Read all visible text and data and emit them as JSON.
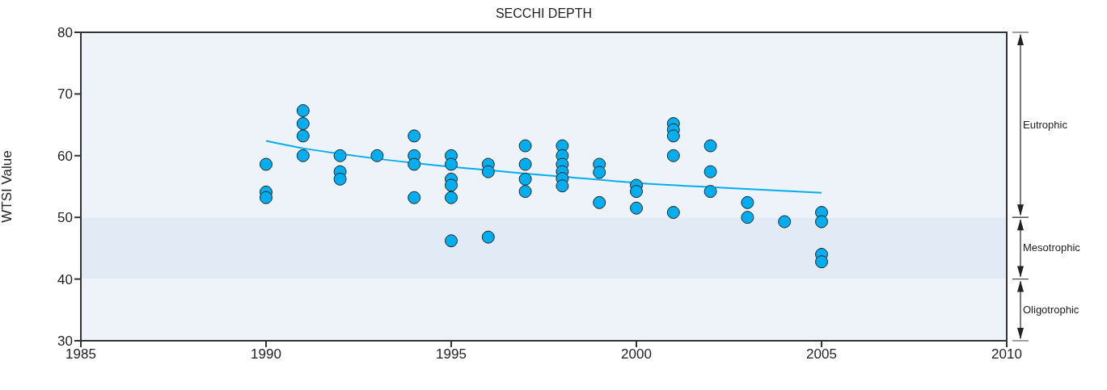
{
  "chart_data": {
    "type": "scatter",
    "title": "SECCHI DEPTH",
    "ylabel": "WTSI Value",
    "xlim": [
      1985,
      2010
    ],
    "xticks": [
      1985,
      1990,
      1995,
      2000,
      2005,
      2010
    ],
    "ylim": [
      30,
      80
    ],
    "yticks": [
      30,
      40,
      50,
      60,
      70,
      80
    ],
    "grid": false,
    "legend": false,
    "series": [
      {
        "type": "scatter",
        "marker": "circle",
        "color": "#00aeef",
        "x": [
          1990,
          1990,
          1990,
          1991,
          1991,
          1991,
          1991,
          1992,
          1992,
          1992,
          1993,
          1994,
          1994,
          1994,
          1994,
          1995,
          1995,
          1995,
          1995,
          1995,
          1995,
          1996,
          1996,
          1996,
          1997,
          1997,
          1997,
          1997,
          1998,
          1998,
          1998,
          1998,
          1998,
          1998,
          1999,
          1999,
          1999,
          2000,
          2000,
          2000,
          2001,
          2001,
          2001,
          2001,
          2001,
          2002,
          2002,
          2002,
          2003,
          2003,
          2004,
          2005,
          2005,
          2005,
          2005
        ],
        "values": [
          58.6,
          54.1,
          53.2,
          67.3,
          65.2,
          63.2,
          60.0,
          60.0,
          57.4,
          56.2,
          60.0,
          63.2,
          60.0,
          58.6,
          53.2,
          60.0,
          58.6,
          56.2,
          55.2,
          53.2,
          46.2,
          58.6,
          57.4,
          46.8,
          61.6,
          58.6,
          56.2,
          54.2,
          61.6,
          60.0,
          58.6,
          57.4,
          56.3,
          55.1,
          58.6,
          57.3,
          52.4,
          55.2,
          54.2,
          51.5,
          65.2,
          64.2,
          63.2,
          60.0,
          50.8,
          61.6,
          57.4,
          54.2,
          52.4,
          50.0,
          49.3,
          50.8,
          49.3,
          44.0,
          42.8
        ]
      },
      {
        "type": "line",
        "marker": "none",
        "color": "#00aeef",
        "x": [
          1990,
          1991,
          1992,
          1993,
          1995,
          1998,
          2000,
          2002,
          2005
        ],
        "values": [
          62.4,
          61.2,
          60.3,
          59.5,
          58.2,
          56.6,
          55.6,
          54.9,
          54.0
        ]
      }
    ],
    "bands": [
      {
        "axis": "y",
        "from": 50,
        "to": 80,
        "label": "Eutrophic"
      },
      {
        "axis": "y",
        "from": 40,
        "to": 50,
        "label": "Mesotrophic"
      },
      {
        "axis": "y",
        "from": 30,
        "to": 40,
        "label": "Oligotrophic"
      }
    ]
  }
}
